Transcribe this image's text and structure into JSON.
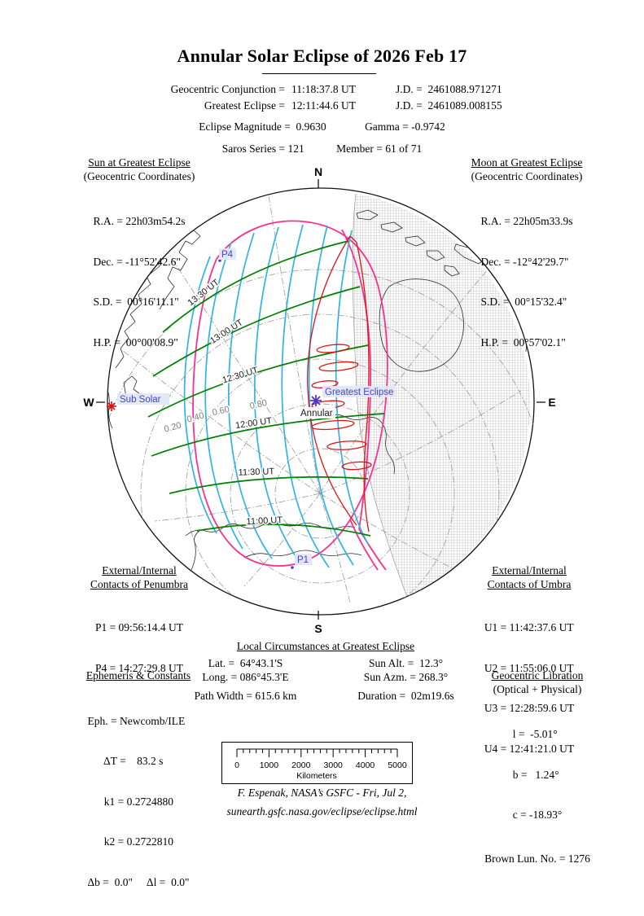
{
  "title": "Annular Solar Eclipse of  2026 Feb 17",
  "header": {
    "rows": [
      {
        "label": "Geocentric Conjunction =",
        "value": "11:18:37.8 UT",
        "jd": "J.D. =  2461088.971271"
      },
      {
        "label": "Greatest Eclipse =",
        "value": "12:11:44.6 UT",
        "jd": "J.D. =  2461089.008155"
      }
    ],
    "magnitude": "Eclipse Magnitude =  0.9630",
    "gamma": "Gamma = -0.9742",
    "saros": "Saros Series = 121",
    "member": "Member = 61 of 71"
  },
  "sun_box": {
    "title": "Sun at Greatest Eclipse",
    "subtitle": "(Geocentric Coordinates)",
    "lines": [
      "R.A. = 22h03m54.2s",
      "Dec. = -11°52'42.6\"",
      "S.D. =  00°16'11.1\"",
      "H.P. =  00°00'08.9\""
    ]
  },
  "moon_box": {
    "title": "Moon at Greatest Eclipse",
    "subtitle": "(Geocentric Coordinates)",
    "lines": [
      "R.A. = 22h05m33.9s",
      "Dec. = -12°42'29.7\"",
      "S.D. =  00°15'32.4\"",
      "H.P. =  00°57'02.1\""
    ]
  },
  "penumbra_box": {
    "title1": "External/Internal",
    "title2": "Contacts of Penumbra",
    "lines": [
      "P1 = 09:56:14.4 UT",
      "P4 = 14:27:29.8 UT"
    ]
  },
  "umbra_box": {
    "title1": "External/Internal",
    "title2": "Contacts of Umbra",
    "lines": [
      "U1 = 11:42:37.6 UT",
      "U2 = 11:55:06.0 UT",
      "U3 = 12:28:59.6 UT",
      "U4 = 12:41:21.0 UT"
    ]
  },
  "local_box": {
    "title": "Local Circumstances at Greatest Eclipse",
    "rows": [
      [
        "Lat. =  64°43.1'S",
        "Sun Alt. =  12.3°"
      ],
      [
        "Long. = 086°45.3'E",
        "Sun Azm. = 268.3°"
      ],
      [
        "Path Width = 615.6 km",
        "Duration =  02m19.6s"
      ]
    ]
  },
  "ephemeris_box": {
    "title": "Ephemeris & Constants",
    "lines": [
      "Eph. = Newcomb/ILE",
      "      ΔT =    83.2 s",
      "      k1 = 0.2724880",
      "      k2 = 0.2722810",
      "Δb =  0.0\"     Δl =  0.0\""
    ]
  },
  "libration_box": {
    "title": "Geocentric Libration",
    "subtitle": "(Optical + Physical)",
    "lines": [
      "l =  -5.01°",
      "b =   1.24°",
      "c = -18.93°"
    ],
    "brown": "Brown Lun. No. = 1276"
  },
  "scale_bar": {
    "ticks": [
      "0",
      "1000",
      "2000",
      "3000",
      "4000",
      "5000"
    ],
    "unit": "Kilometers"
  },
  "footer": {
    "line1": "F. Espenak, NASA’s GSFC - Fri, Jul 2,",
    "line2": "sunearth.gsfc.nasa.gov/eclipse/eclipse.html"
  },
  "map": {
    "compass": {
      "north": "N",
      "south": "S",
      "west": "W",
      "east": "E"
    },
    "labels": {
      "sub_solar": "Sub Solar",
      "greatest_eclipse": "Greatest Eclipse",
      "annular": "Annular",
      "p1": "P1",
      "p4": "P4"
    },
    "time_contour_labels": [
      "13:30 UT",
      "13:00 UT",
      "12:30 UT",
      "12:00 UT",
      "11:30 UT",
      "11:00 UT"
    ],
    "magnitude_labels": [
      "0.20",
      "0.40",
      "0.60",
      "0.80"
    ],
    "colors": {
      "magnitude_contour": "#2fb3e8",
      "time_contour": "#008000",
      "penumbra_limit": "#f9308e",
      "annular_path": "#dc1414",
      "map_label_blue": "#4343cf",
      "marker_red": "#dd1111",
      "night_shading": "#bbbbbb"
    }
  }
}
